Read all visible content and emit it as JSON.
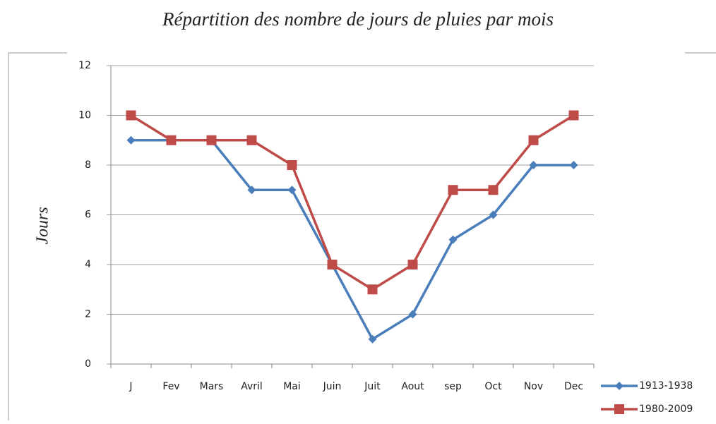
{
  "chart_data": {
    "type": "line",
    "title": "Répartition des nombre de jours de pluies par mois",
    "y_label": "Jours",
    "categories": [
      "J",
      "Fev",
      "Mars",
      "Avril",
      "Mai",
      "Juin",
      "Juit",
      "Aout",
      "sep",
      "Oct",
      "Nov",
      "Dec"
    ],
    "series": [
      {
        "name": "1913-1938",
        "color": "#4a7ebb",
        "marker": "diamond",
        "values": [
          9,
          9,
          9,
          7,
          7,
          4,
          1,
          2,
          5,
          6,
          8,
          8
        ]
      },
      {
        "name": "1980-2009",
        "color": "#be4b48",
        "marker": "square",
        "values": [
          10,
          9,
          9,
          9,
          8,
          4,
          3,
          4,
          7,
          7,
          9,
          10
        ]
      }
    ],
    "ylim": [
      0,
      12
    ],
    "yticks": [
      0,
      2,
      4,
      6,
      8,
      10,
      12
    ],
    "grid": true,
    "legend": "bottom-right"
  }
}
